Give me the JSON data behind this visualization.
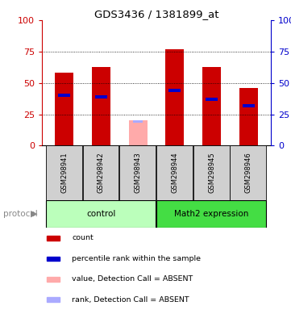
{
  "title": "GDS3436 / 1381899_at",
  "samples": [
    "GSM298941",
    "GSM298942",
    "GSM298943",
    "GSM298944",
    "GSM298945",
    "GSM298946"
  ],
  "red_bars": [
    58,
    63,
    0,
    77,
    63,
    46
  ],
  "blue_marks": [
    40,
    39,
    0,
    44,
    37,
    32
  ],
  "absent_pink_bars": [
    0,
    0,
    20,
    0,
    0,
    0
  ],
  "absent_blue_marks": [
    0,
    0,
    19,
    0,
    0,
    0
  ],
  "absent_samples": [
    2
  ],
  "groups": [
    {
      "label": "control",
      "start": 0,
      "end": 3,
      "color": "#aaffaa"
    },
    {
      "label": "Math2 expression",
      "start": 3,
      "end": 6,
      "color": "#44cc44"
    }
  ],
  "ylim": [
    0,
    100
  ],
  "left_axis_color": "#cc0000",
  "right_axis_color": "#0000cc",
  "bar_color": "#cc0000",
  "blue_mark_color": "#0000cc",
  "absent_bar_color": "#ffaaaa",
  "absent_mark_color": "#aaaaff",
  "grid_ticks": [
    25,
    50,
    75
  ],
  "legend_items": [
    {
      "label": "count",
      "color": "#cc0000"
    },
    {
      "label": "percentile rank within the sample",
      "color": "#0000cc"
    },
    {
      "label": "value, Detection Call = ABSENT",
      "color": "#ffaaaa"
    },
    {
      "label": "rank, Detection Call = ABSENT",
      "color": "#aaaaff"
    }
  ],
  "protocol_label": "protocol",
  "control_color": "#bbffbb",
  "math2_color": "#44dd44"
}
